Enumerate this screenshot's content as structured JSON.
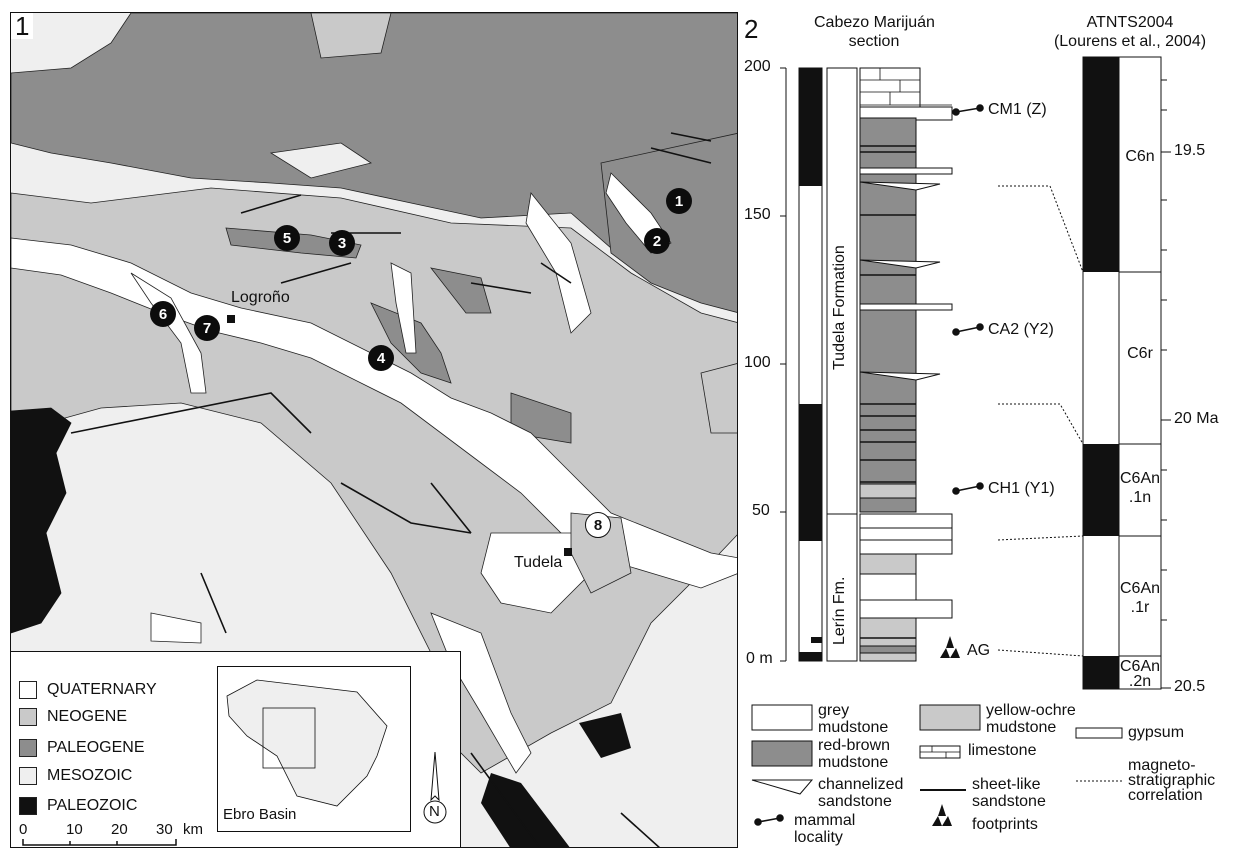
{
  "map_panel": {
    "panel_number": "1",
    "places": {
      "logrono": "Logroño",
      "tudela": "Tudela"
    },
    "localities": [
      "1",
      "2",
      "3",
      "4",
      "5",
      "6",
      "7",
      "8"
    ],
    "legend": [
      {
        "label": "QUATERNARY",
        "color": "#ffffff"
      },
      {
        "label": "NEOGENE",
        "color": "#c9c9c9"
      },
      {
        "label": "PALEOGENE",
        "color": "#8d8d8d"
      },
      {
        "label": "MESOZOIC",
        "color": "#efefef"
      },
      {
        "label": "PALEOZOIC",
        "color": "#111111"
      }
    ],
    "inset_label": "Ebro Basin",
    "north_label": "N",
    "scale": {
      "ticks": [
        "0",
        "10",
        "20",
        "30"
      ],
      "unit": "km"
    }
  },
  "section_panel": {
    "panel_number": "2",
    "section_title_line1": "Cabezo Marijuán",
    "section_title_line2": "section",
    "gpts_title_line1": "ATNTS2004",
    "gpts_title_line2": "(Lourens et al., 2004)",
    "depth_ticks": [
      "200",
      "150",
      "100",
      "50",
      "0 m"
    ],
    "formations": {
      "upper": "Tudela Formation",
      "lower": "Lerín Fm."
    },
    "localities": [
      "CM1 (Z)",
      "CA2 (Y2)",
      "CH1 (Y1)",
      "AG"
    ],
    "chrons": [
      {
        "line1": "C6n",
        "line2": ""
      },
      {
        "line1": "C6r",
        "line2": ""
      },
      {
        "line1": "C6An",
        "line2": ".1n"
      },
      {
        "line1": "C6An",
        "line2": ".1r"
      },
      {
        "line1": "C6An",
        "line2": ".2n"
      }
    ],
    "age_ticks": [
      "19.5",
      "20 Ma",
      "20.5"
    ],
    "legend": {
      "grey_mudstone": [
        "grey",
        "mudstone"
      ],
      "red_brown_mudstone": [
        "red-brown",
        "mudstone"
      ],
      "channelized_sandstone": [
        "channelized",
        "sandstone"
      ],
      "mammal_locality": [
        "mammal",
        "locality"
      ],
      "yellow_ochre_mudstone": [
        "yellow-ochre",
        "mudstone"
      ],
      "limestone": "limestone",
      "sheet_like_sandstone": [
        "sheet-like",
        "sandstone"
      ],
      "footprints": "footprints",
      "gypsum": "gypsum",
      "magnetostratigraphic_correlation": [
        "magneto-",
        "stratigraphic",
        "correlation"
      ]
    }
  }
}
